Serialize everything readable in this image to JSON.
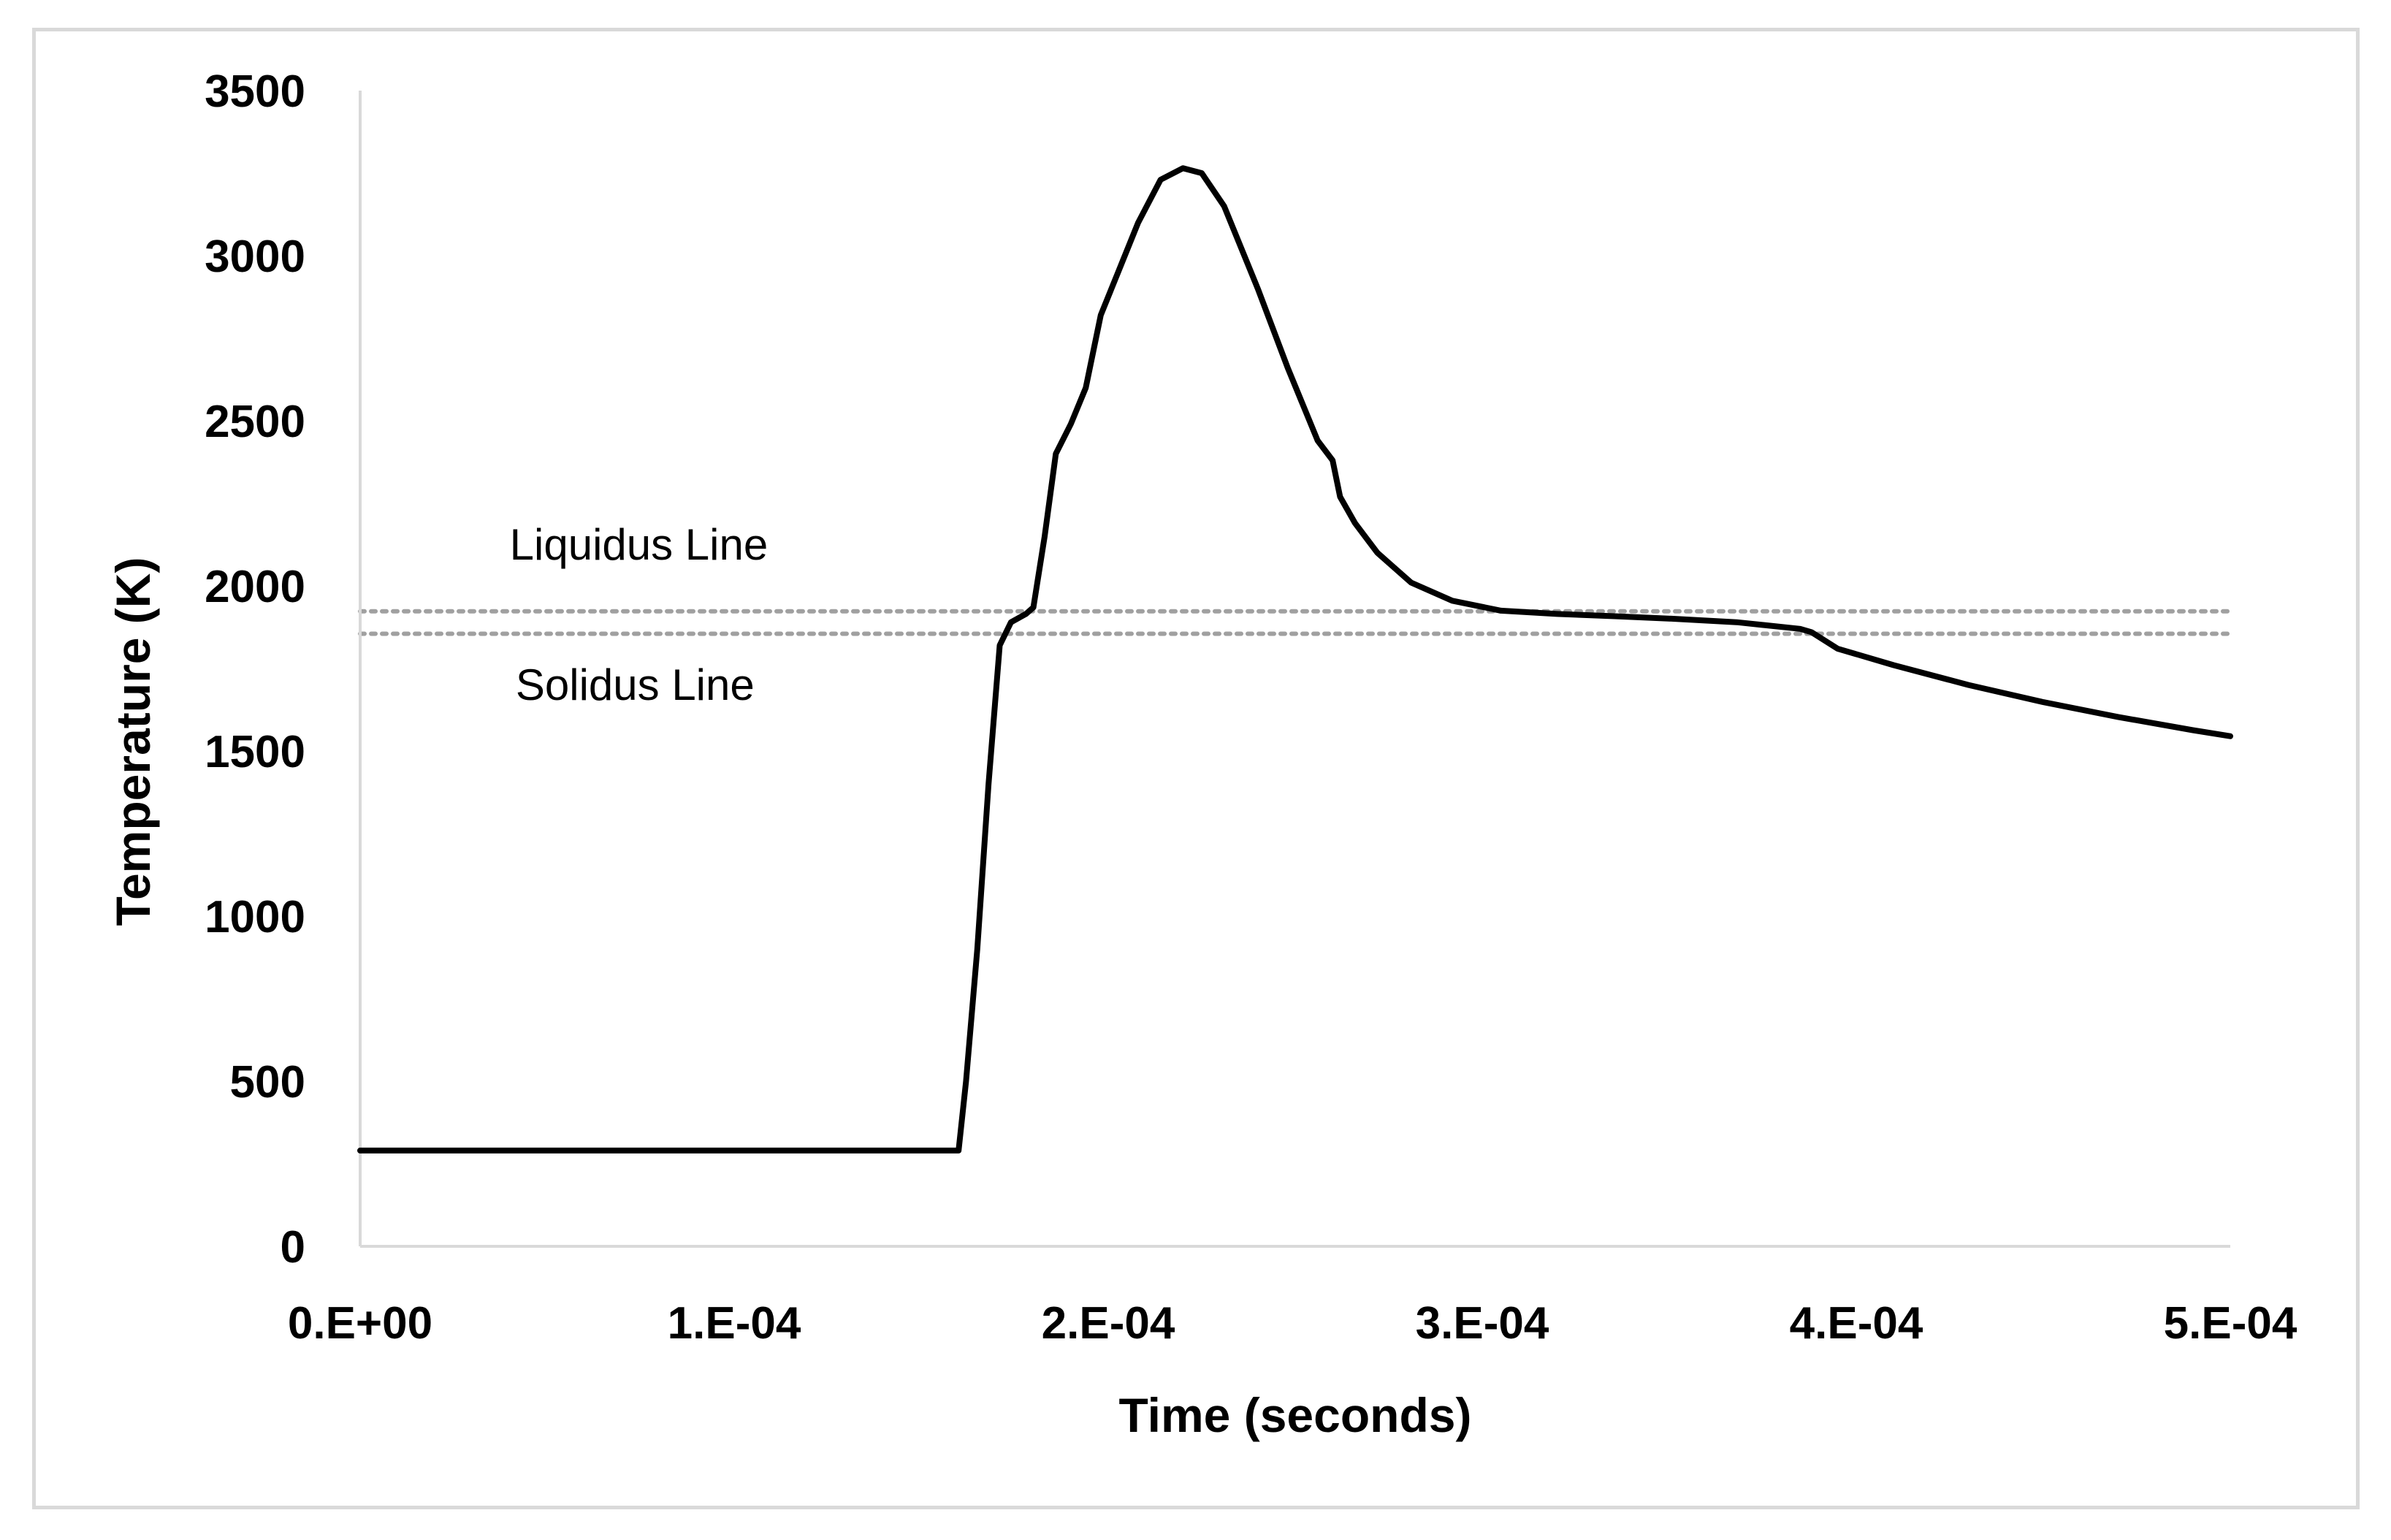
{
  "chart_data": {
    "type": "line",
    "xlabel": "Time (seconds)",
    "ylabel": "Temperature (K)",
    "xlim": [
      0,
      0.0005
    ],
    "ylim": [
      0,
      3500
    ],
    "x_ticks": [
      {
        "value": 0,
        "label": "0.E+00"
      },
      {
        "value": 0.0001,
        "label": "1.E-04"
      },
      {
        "value": 0.0002,
        "label": "2.E-04"
      },
      {
        "value": 0.0003,
        "label": "3.E-04"
      },
      {
        "value": 0.0004,
        "label": "4.E-04"
      },
      {
        "value": 0.0005,
        "label": "5.E-04"
      }
    ],
    "y_ticks": [
      {
        "value": 0,
        "label": "0"
      },
      {
        "value": 500,
        "label": "500"
      },
      {
        "value": 1000,
        "label": "1000"
      },
      {
        "value": 1500,
        "label": "1500"
      },
      {
        "value": 2000,
        "label": "2000"
      },
      {
        "value": 2500,
        "label": "2500"
      },
      {
        "value": 3000,
        "label": "3000"
      },
      {
        "value": 3500,
        "label": "3500"
      }
    ],
    "grid": false,
    "legend": "none",
    "series": [
      {
        "color": "#000000",
        "points": [
          [
            0.0,
            290
          ],
          [
            0.00016,
            290
          ],
          [
            0.000162,
            500
          ],
          [
            0.000165,
            900
          ],
          [
            0.000168,
            1400
          ],
          [
            0.000171,
            1820
          ],
          [
            0.000174,
            1890
          ],
          [
            0.000178,
            1915
          ],
          [
            0.00018,
            1935
          ],
          [
            0.000183,
            2150
          ],
          [
            0.000186,
            2400
          ],
          [
            0.00019,
            2490
          ],
          [
            0.000194,
            2600
          ],
          [
            0.000198,
            2820
          ],
          [
            0.000203,
            2960
          ],
          [
            0.000208,
            3100
          ],
          [
            0.000214,
            3230
          ],
          [
            0.00022,
            3265
          ],
          [
            0.000225,
            3250
          ],
          [
            0.000231,
            3150
          ],
          [
            0.00024,
            2900
          ],
          [
            0.000248,
            2660
          ],
          [
            0.000256,
            2440
          ],
          [
            0.00026,
            2380
          ],
          [
            0.000262,
            2270
          ],
          [
            0.000266,
            2190
          ],
          [
            0.000272,
            2100
          ],
          [
            0.000281,
            2010
          ],
          [
            0.000292,
            1955
          ],
          [
            0.000305,
            1925
          ],
          [
            0.00032,
            1915
          ],
          [
            0.000336,
            1908
          ],
          [
            0.000352,
            1900
          ],
          [
            0.000368,
            1890
          ],
          [
            0.000385,
            1870
          ],
          [
            0.000388,
            1860
          ],
          [
            0.000395,
            1810
          ],
          [
            0.00041,
            1760
          ],
          [
            0.00043,
            1700
          ],
          [
            0.00045,
            1648
          ],
          [
            0.00047,
            1603
          ],
          [
            0.00049,
            1563
          ],
          [
            0.0005,
            1545
          ]
        ]
      }
    ],
    "reference_lines": [
      {
        "name": "Liquidus Line",
        "y": 1923,
        "style": "dotted",
        "color": "#a0a0a0"
      },
      {
        "name": "Solidus Line",
        "y": 1855,
        "style": "dotted",
        "color": "#a0a0a0"
      }
    ],
    "annotations": [
      {
        "text": "Liquidus Line",
        "x": 7.45e-05,
        "y": 2080
      },
      {
        "text": "Solidus Line",
        "x": 7.35e-05,
        "y": 1655
      }
    ]
  }
}
